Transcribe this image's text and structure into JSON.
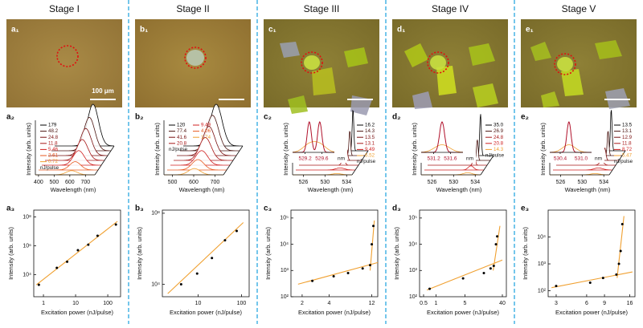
{
  "stages": [
    {
      "title": "Stage I",
      "image": {
        "label": "a₁",
        "scale_bar": "100 μm"
      }
    },
    {
      "title": "Stage II",
      "image": {
        "label": "b₁"
      }
    },
    {
      "title": "Stage III",
      "image": {
        "label": "c₁"
      }
    },
    {
      "title": "Stage IV",
      "image": {
        "label": "d₁"
      }
    },
    {
      "title": "Stage V",
      "image": {
        "label": "e₁"
      }
    }
  ],
  "chart_data": [
    {
      "type": "waterfall",
      "label": "a₂",
      "xlabel": "Wavelength (nm)",
      "ylabel": "Intensity (arb. units)",
      "xlim": [
        380,
        760
      ],
      "xticks": [
        400,
        500,
        600,
        700
      ],
      "legend_title": "nJ/pulse",
      "legend_position": "upper left",
      "legend_columns": 1,
      "series": [
        {
          "name": "179",
          "color": "#000000",
          "peak": 625,
          "width": 35,
          "height": 1.0
        },
        {
          "name": "48.2",
          "color": "#4a1410",
          "peak": 622,
          "width": 35,
          "height": 0.8
        },
        {
          "name": "24.8",
          "color": "#7a1010",
          "peak": 620,
          "width": 35,
          "height": 0.65
        },
        {
          "name": "11.8",
          "color": "#a81818",
          "peak": 618,
          "width": 35,
          "height": 0.5
        },
        {
          "name": "5.46",
          "color": "#d02020",
          "peak": 616,
          "width": 35,
          "height": 0.35
        },
        {
          "name": "2.61",
          "color": "#e85a20",
          "peak": 614,
          "width": 35,
          "height": 0.2
        },
        {
          "name": "0.72",
          "color": "#f0a030",
          "peak": 612,
          "width": 35,
          "height": 0.1
        }
      ]
    },
    {
      "type": "waterfall",
      "label": "b₂",
      "xlabel": "Wavelength (nm)",
      "ylabel": "Intensity (arb. units)",
      "xlim": [
        460,
        740
      ],
      "xticks": [
        500,
        600,
        700
      ],
      "legend_title": "nJ/pulse",
      "legend_position": "upper left",
      "legend_columns": 2,
      "series": [
        {
          "name": "120",
          "color": "#000000",
          "peak": 615,
          "width": 28,
          "height": 1.0
        },
        {
          "name": "77.4",
          "color": "#4a1410",
          "peak": 613,
          "width": 28,
          "height": 0.85
        },
        {
          "name": "41.6",
          "color": "#7a1010",
          "peak": 611,
          "width": 28,
          "height": 0.7
        },
        {
          "name": "20.8",
          "color": "#a81818",
          "peak": 609,
          "width": 28,
          "height": 0.55
        },
        {
          "name": "9.49",
          "color": "#d02020",
          "peak": 607,
          "width": 28,
          "height": 0.35
        },
        {
          "name": "4.06",
          "color": "#e85a20",
          "peak": 605,
          "width": 28,
          "height": 0.25
        },
        {
          "name": "1.74",
          "color": "#f0a030",
          "peak": 603,
          "width": 28,
          "height": 0.15
        }
      ]
    },
    {
      "type": "waterfall",
      "label": "c₂",
      "xlabel": "Wavelength (nm)",
      "ylabel": "Intensity (arb. units)",
      "xlim": [
        524,
        535
      ],
      "xticks": [
        526,
        530,
        534
      ],
      "legend_title": "nJ/pulse",
      "legend_position": "right",
      "legend_columns": 1,
      "inset": {
        "xlim": [
          528.9,
          529.9
        ],
        "xticks": [
          529.2,
          529.6
        ],
        "xlabel": "nm",
        "peaks": [
          529.3,
          529.55
        ],
        "width": 0.05,
        "color": "#b0102a"
      },
      "series": [
        {
          "name": "16.2",
          "color": "#000000",
          "peak": 532.2,
          "width": 0.15,
          "height": 1.0
        },
        {
          "name": "14.3",
          "color": "#4a1410",
          "peak": 532.2,
          "width": 0.15,
          "height": 0.6
        },
        {
          "name": "13.5",
          "color": "#7a1010",
          "peak": 532.2,
          "width": 0.2,
          "height": 0.3
        },
        {
          "name": "13.1",
          "color": "#a81818",
          "peak": 532.2,
          "width": 0.3,
          "height": 0.15
        },
        {
          "name": "9.49",
          "color": "#d02020",
          "peak": 532.2,
          "width": 0.8,
          "height": 0.05
        },
        {
          "name": "6.52",
          "color": "#f0a030",
          "peak": 532.2,
          "width": 0.8,
          "height": 0.03
        }
      ]
    },
    {
      "type": "waterfall",
      "label": "d₂",
      "xlabel": "Wavelength (nm)",
      "ylabel": "Intensity (arb. units)",
      "xlim": [
        524,
        535
      ],
      "xticks": [
        526,
        530,
        534
      ],
      "legend_title": "nJ/pulse",
      "legend_position": "right",
      "legend_columns": 1,
      "inset": {
        "xlim": [
          530.9,
          531.9
        ],
        "xticks": [
          531.2,
          531.6
        ],
        "xlabel": "nm",
        "peaks": [
          531.4
        ],
        "width": 0.06,
        "color": "#b0102a"
      },
      "series": [
        {
          "name": "35.0",
          "color": "#000000",
          "peak": 532.6,
          "width": 0.15,
          "height": 1.0
        },
        {
          "name": "26.9",
          "color": "#4a1410",
          "peak": 532.6,
          "width": 0.15,
          "height": 0.5
        },
        {
          "name": "24.8",
          "color": "#a81818",
          "peak": 532.6,
          "width": 0.2,
          "height": 0.3
        },
        {
          "name": "20.8",
          "color": "#d02020",
          "peak": 532.6,
          "width": 0.5,
          "height": 0.1
        },
        {
          "name": "14.3",
          "color": "#f0a030",
          "peak": 532.6,
          "width": 0.8,
          "height": 0.05
        }
      ]
    },
    {
      "type": "waterfall",
      "label": "e₂",
      "xlabel": "Wavelength (nm)",
      "ylabel": "Intensity (arb. units)",
      "xlim": [
        524,
        535
      ],
      "xticks": [
        526,
        530,
        534
      ],
      "legend_title": "nJ/pulse",
      "legend_position": "right",
      "legend_columns": 1,
      "inset": {
        "xlim": [
          530.1,
          531.3
        ],
        "xticks": [
          530.4,
          {
            "value": 531,
            "label": "531.0"
          }
        ],
        "xlabel": "nm",
        "peaks": [
          530.65
        ],
        "width": 0.06,
        "color": "#b0102a"
      },
      "series": [
        {
          "name": "13.5",
          "color": "#000000",
          "peak": 532.4,
          "width": 0.15,
          "height": 1.0
        },
        {
          "name": "13.1",
          "color": "#4a1410",
          "peak": 532.4,
          "width": 0.15,
          "height": 0.6
        },
        {
          "name": "12.9",
          "color": "#7a1010",
          "peak": 532.4,
          "width": 0.2,
          "height": 0.3
        },
        {
          "name": "11.8",
          "color": "#a81818",
          "peak": 532.4,
          "width": 0.4,
          "height": 0.1
        },
        {
          "name": "8.72",
          "color": "#d02020",
          "peak": 532.4,
          "width": 0.8,
          "height": 0.05
        },
        {
          "name": "5.47",
          "color": "#f0a030",
          "peak": 532.4,
          "width": 0.8,
          "height": 0.03
        }
      ]
    },
    {
      "type": "scatter",
      "label": "a₃",
      "xlabel": "Excitation power (nJ/pulse)",
      "ylabel": "Intensity (arb. units)",
      "log_x": true,
      "log_y": true,
      "xlim": [
        0.5,
        250
      ],
      "ylim": [
        300,
        300000000
      ],
      "xticks": [
        1,
        10,
        100
      ],
      "yticks": [
        {
          "value": 10000,
          "label": "10⁴"
        },
        {
          "value": 1000000,
          "label": "10⁶"
        },
        {
          "value": 100000000,
          "label": "10⁸"
        }
      ],
      "color": "#000000",
      "x": [
        0.72,
        2.61,
        5.46,
        11.8,
        24.8,
        48.2,
        179
      ],
      "values": [
        2000,
        30000,
        80000,
        500000,
        1200000,
        5000000,
        30000000
      ],
      "fits": [
        {
          "color": "#f0a030",
          "x": [
            0.6,
            200
          ],
          "values": [
            2000,
            50000000
          ]
        }
      ]
    },
    {
      "type": "scatter",
      "label": "b₃",
      "xlabel": "Excitation power (nJ/pulse)",
      "ylabel": "Intensity (arb. units)",
      "log_x": true,
      "log_y": true,
      "xlim": [
        1.5,
        150
      ],
      "ylim": [
        2000,
        150000000
      ],
      "xticks": [
        10,
        100
      ],
      "yticks": [
        {
          "value": 10000,
          "label": "10⁴"
        },
        {
          "value": 100000000,
          "label": "10⁸"
        }
      ],
      "color": "#000000",
      "x": [
        4.06,
        9.49,
        20.8,
        41.6,
        77.4
      ],
      "values": [
        10000,
        40000,
        300000,
        3000000,
        10000000
      ],
      "fits": [
        {
          "color": "#f0a030",
          "x": [
            2,
            110
          ],
          "values": [
            3000,
            30000000
          ]
        }
      ]
    },
    {
      "type": "scatter",
      "label": "c₃",
      "xlabel": "Excitation power (nJ/pulse)",
      "ylabel": "Intensity (arb. units)",
      "log_x": true,
      "log_y": true,
      "xlim": [
        1.5,
        14
      ],
      "ylim": [
        100,
        200000
      ],
      "xticks": [
        2,
        4,
        12
      ],
      "yticks": [
        {
          "value": 100,
          "label": "10²"
        },
        {
          "value": 1000,
          "label": "10³"
        },
        {
          "value": 10000,
          "label": "10⁴"
        },
        {
          "value": 100000,
          "label": "10⁵"
        }
      ],
      "color": "#000000",
      "x": [
        2.6,
        4.5,
        6.52,
        9.49,
        11.5,
        12,
        12.5
      ],
      "values": [
        400,
        600,
        800,
        1200,
        1600,
        10000,
        50000
      ],
      "fits": [
        {
          "color": "#f0a030",
          "x": [
            1.8,
            14
          ],
          "values": [
            300,
            2000
          ]
        },
        {
          "color": "#f0a030",
          "x": [
            11.5,
            12.8
          ],
          "values": [
            1000,
            80000
          ]
        }
      ]
    },
    {
      "type": "scatter",
      "label": "d₃",
      "xlabel": "Excitation power (nJ/pulse)",
      "ylabel": "Intensity (arb. units)",
      "log_x": true,
      "log_y": true,
      "xlim": [
        0.4,
        50
      ],
      "ylim": [
        100,
        200000
      ],
      "xticks": [
        0.5,
        1,
        5,
        40
      ],
      "yticks": [
        {
          "value": 100,
          "label": "10²"
        },
        {
          "value": 1000,
          "label": "10³"
        },
        {
          "value": 10000,
          "label": "10⁴"
        },
        {
          "value": 100000,
          "label": "10⁵"
        }
      ],
      "color": "#000000",
      "x": [
        0.7,
        4.5,
        14.3,
        20.8,
        24.8,
        28,
        30
      ],
      "values": [
        200,
        500,
        800,
        1200,
        1500,
        10000,
        20000
      ],
      "fits": [
        {
          "color": "#f0a030",
          "x": [
            0.6,
            40
          ],
          "values": [
            180,
            2500
          ]
        },
        {
          "color": "#f0a030",
          "x": [
            24,
            35
          ],
          "values": [
            1000,
            50000
          ]
        }
      ]
    },
    {
      "type": "scatter",
      "label": "e₃",
      "xlabel": "Excitation power (nJ/pulse)",
      "ylabel": "Intensity (arb. units)",
      "log_x": true,
      "log_y": true,
      "xlim": [
        2.5,
        18
      ],
      "ylim": [
        60,
        100000
      ],
      "xticks": [
        3,
        6,
        9,
        16
      ],
      "yticks": [
        {
          "value": 100,
          "label": "10²"
        },
        {
          "value": 1000,
          "label": "10³"
        },
        {
          "value": 10000,
          "label": "10⁴"
        }
      ],
      "color": "#000000",
      "x": [
        3,
        6.5,
        8.72,
        11.8,
        12.5,
        13,
        13.5
      ],
      "values": [
        150,
        200,
        300,
        400,
        1000,
        3000,
        30000
      ],
      "fits": [
        {
          "color": "#f0a030",
          "x": [
            2.7,
            17
          ],
          "values": [
            130,
            500
          ]
        },
        {
          "color": "#f0a030",
          "x": [
            12,
            14
          ],
          "values": [
            300,
            60000
          ]
        }
      ]
    }
  ]
}
